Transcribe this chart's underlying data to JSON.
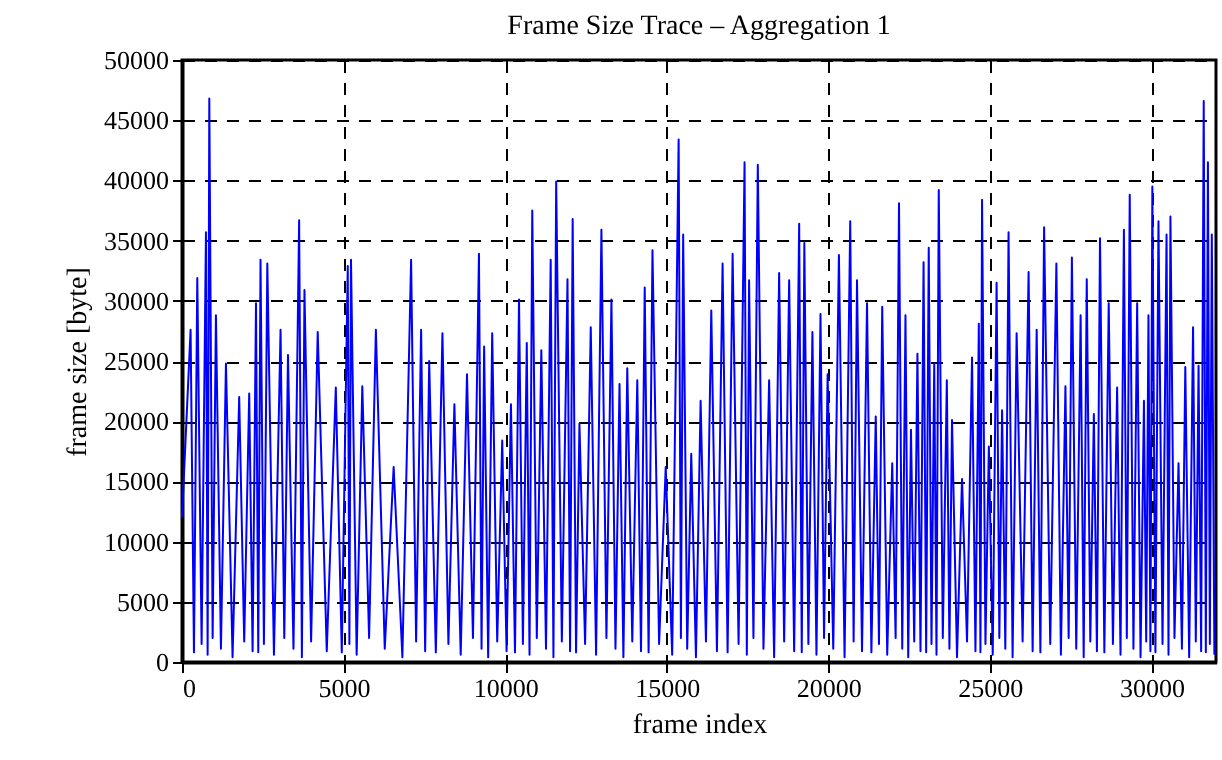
{
  "chart_data": {
    "type": "line",
    "title": "Frame Size Trace – Aggregation 1",
    "xlabel": "frame index",
    "ylabel": "frame size [byte]",
    "xlim": [
      0,
      32000
    ],
    "xticks": [
      0,
      5000,
      10000,
      15000,
      20000,
      25000,
      30000
    ],
    "ylim": [
      0,
      50000
    ],
    "yticks": [
      0,
      5000,
      10000,
      15000,
      20000,
      25000,
      30000,
      35000,
      40000,
      45000,
      50000
    ],
    "grid": true,
    "marker": "none",
    "line_style": "solid",
    "series": [
      {
        "color": "#0000ff",
        "x": [
          0,
          266,
          370,
          473,
          607,
          741,
          793,
          845,
          948,
          1050,
          1205,
          1360,
          1565,
          1770,
          1925,
          2080,
          2185,
          2290,
          2360,
          2430,
          2535,
          2640,
          2845,
          3050,
          3165,
          3280,
          3450,
          3625,
          3710,
          3790,
          3995,
          4200,
          4480,
          4760,
          4945,
          5130,
          5180,
          5230,
          5405,
          5580,
          5790,
          6000,
          6275,
          6550,
          6820,
          7090,
          7245,
          7400,
          7525,
          7650,
          7855,
          8060,
          8245,
          8430,
          8625,
          8820,
          9005,
          9190,
          9270,
          9350,
          9475,
          9600,
          9755,
          9910,
          10045,
          10180,
          10305,
          10430,
          10550,
          10670,
          10755,
          10840,
          10980,
          11120,
          11265,
          11410,
          11495,
          11580,
          11755,
          11930,
          12010,
          12090,
          12195,
          12300,
          12475,
          12650,
          12815,
          12980,
          13135,
          13290,
          13415,
          13540,
          13660,
          13780,
          13935,
          14090,
          14205,
          14320,
          14440,
          14560,
          14765,
          14970,
          15170,
          15370,
          15440,
          15510,
          15635,
          15760,
          15905,
          16050,
          16215,
          16380,
          16555,
          16730,
          16885,
          17040,
          17225,
          17410,
          17480,
          17550,
          17685,
          17820,
          17995,
          18170,
          18325,
          18480,
          18635,
          18790,
          18945,
          19100,
          19180,
          19260,
          19385,
          19510,
          19635,
          19760,
          19870,
          19980,
          20155,
          20330,
          20505,
          20680,
          20785,
          20890,
          21045,
          21200,
          21335,
          21470,
          21570,
          21670,
          21825,
          21980,
          22085,
          22190,
          22290,
          22390,
          22475,
          22560,
          22660,
          22760,
          22855,
          22950,
          23030,
          23110,
          23195,
          23280,
          23350,
          23420,
          23545,
          23670,
          23750,
          23830,
          23985,
          24140,
          24295,
          24450,
          24555,
          24660,
          24710,
          24760,
          24865,
          24970,
          25090,
          25210,
          25295,
          25380,
          25480,
          25580,
          25705,
          25830,
          26015,
          26200,
          26325,
          26450,
          26565,
          26680,
          26870,
          27060,
          27200,
          27340,
          27440,
          27540,
          27675,
          27810,
          27905,
          28000,
          28110,
          28220,
          28315,
          28410,
          28545,
          28680,
          28810,
          28940,
          29045,
          29150,
          29240,
          29330,
          29445,
          29560,
          29665,
          29770,
          29840,
          29910,
          29970,
          30030,
          30125,
          30220,
          30345,
          30470,
          30530,
          30590,
          30715,
          30840,
          30945,
          31050,
          31170,
          31290,
          31375,
          31460,
          31540,
          31620,
          31685,
          31750,
          31810,
          31870,
          31950
        ],
        "values": [
          12000,
          27600,
          800,
          31900,
          1500,
          35700,
          600,
          46800,
          2000,
          28800,
          1100,
          24800,
          400,
          22000,
          1700,
          22300,
          900,
          29800,
          800,
          33400,
          1500,
          33100,
          600,
          27600,
          2000,
          25500,
          1100,
          36700,
          400,
          30900,
          1700,
          27400,
          900,
          22800,
          800,
          32900,
          1500,
          33400,
          600,
          22900,
          2000,
          27600,
          1100,
          16200,
          400,
          33400,
          1700,
          27600,
          900,
          25000,
          800,
          27300,
          1500,
          21400,
          600,
          23900,
          2000,
          33900,
          1100,
          26200,
          400,
          27300,
          1700,
          18400,
          900,
          21400,
          800,
          30100,
          1500,
          26500,
          600,
          37500,
          2000,
          25900,
          1100,
          33400,
          400,
          39900,
          1700,
          31800,
          900,
          36800,
          800,
          19800,
          1500,
          27800,
          600,
          35900,
          2000,
          30100,
          1100,
          23100,
          400,
          24400,
          1700,
          23400,
          900,
          31100,
          800,
          34200,
          1500,
          16200,
          600,
          43400,
          2000,
          35500,
          1100,
          17300,
          400,
          21700,
          1700,
          29200,
          900,
          33100,
          800,
          33900,
          1500,
          41500,
          600,
          31700,
          2000,
          41300,
          1100,
          23400,
          400,
          32300,
          1700,
          31700,
          900,
          36400,
          800,
          34800,
          1500,
          27400,
          600,
          28900,
          2000,
          23900,
          1100,
          33800,
          400,
          36600,
          1700,
          31700,
          900,
          29800,
          800,
          20400,
          1500,
          29500,
          600,
          16500,
          2000,
          38100,
          1100,
          28800,
          400,
          19300,
          1700,
          25600,
          900,
          33200,
          800,
          34400,
          1500,
          24800,
          600,
          39200,
          2000,
          23400,
          1100,
          20100,
          400,
          15200,
          1700,
          25300,
          900,
          28100,
          800,
          38400,
          1500,
          17900,
          600,
          31500,
          2000,
          20900,
          1100,
          35700,
          400,
          27300,
          1700,
          32400,
          900,
          27600,
          800,
          36100,
          1500,
          33100,
          600,
          22900,
          2000,
          33600,
          1100,
          28800,
          400,
          31800,
          1700,
          20600,
          900,
          35200,
          800,
          29800,
          1500,
          22800,
          600,
          35900,
          2000,
          38800,
          1100,
          29800,
          400,
          21700,
          1700,
          28800,
          900,
          39500,
          800,
          36600,
          1500,
          35500,
          600,
          37000,
          2000,
          16500,
          1100,
          24500,
          400,
          27800,
          1700,
          24600,
          900,
          46600,
          800,
          41500,
          1500,
          35500,
          600
        ]
      }
    ]
  }
}
